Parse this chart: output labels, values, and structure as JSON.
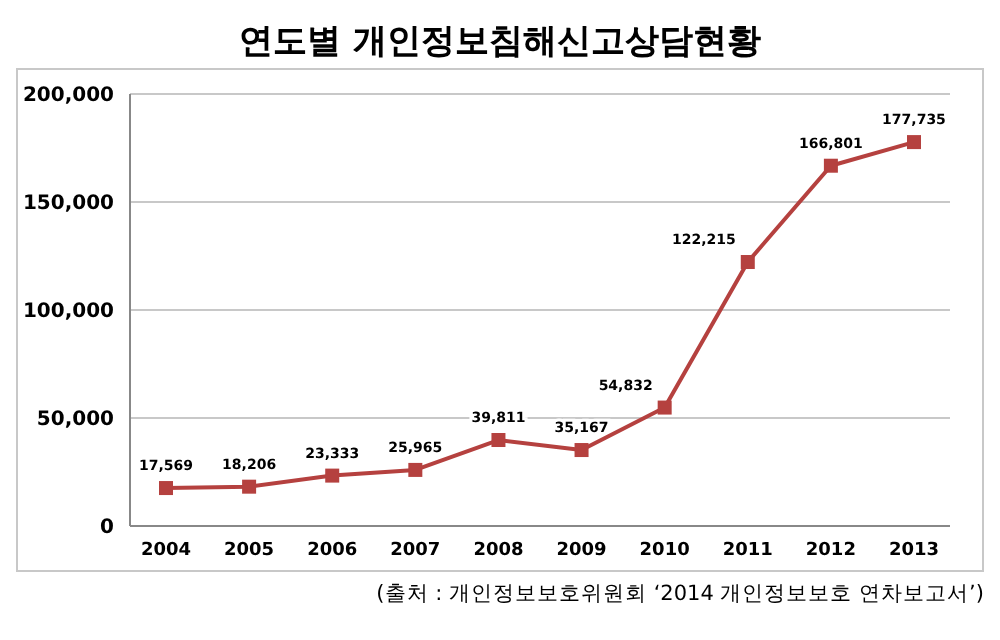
{
  "chart_data": {
    "type": "line",
    "title": "연도별 개인정보침해신고상담현황",
    "categories": [
      "2004",
      "2005",
      "2006",
      "2007",
      "2008",
      "2009",
      "2010",
      "2011",
      "2012",
      "2013"
    ],
    "series": [
      {
        "color": "#b5413f",
        "values": [
          17569,
          18206,
          23333,
          25965,
          39811,
          35167,
          54832,
          122215,
          166801,
          177735
        ],
        "value_labels": [
          "17,569",
          "18,206",
          "23,333",
          "25,965",
          "39,811",
          "35,167",
          "54,832",
          "122,215",
          "166,801",
          "177,735"
        ]
      }
    ],
    "ylim": [
      0,
      200000
    ],
    "yticks": [
      0,
      {
        "value": 50000,
        "label": "50,000"
      },
      {
        "value": 100000,
        "label": "100,000"
      },
      {
        "value": 150000,
        "label": "150,000"
      },
      {
        "value": 200000,
        "label": "200,000"
      }
    ],
    "grid": "y",
    "marker": "square",
    "annotations": [
      "(출처 : 개인정보보호위원회 ‘2014 개인정보보호 연차보고서’)"
    ]
  }
}
